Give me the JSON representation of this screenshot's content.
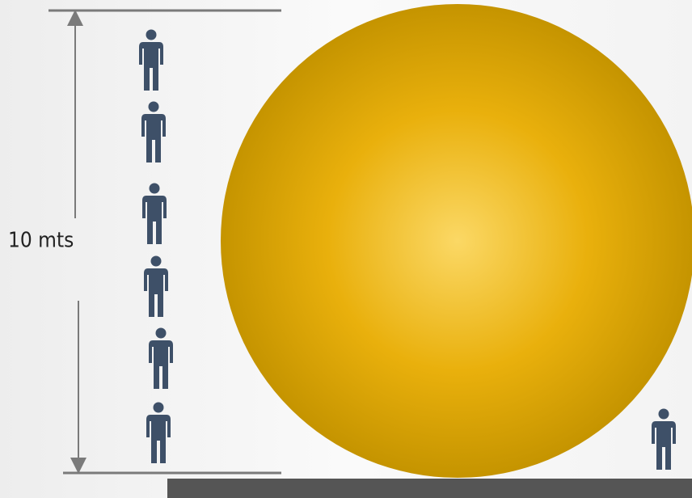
{
  "label": "10 mts"
}
